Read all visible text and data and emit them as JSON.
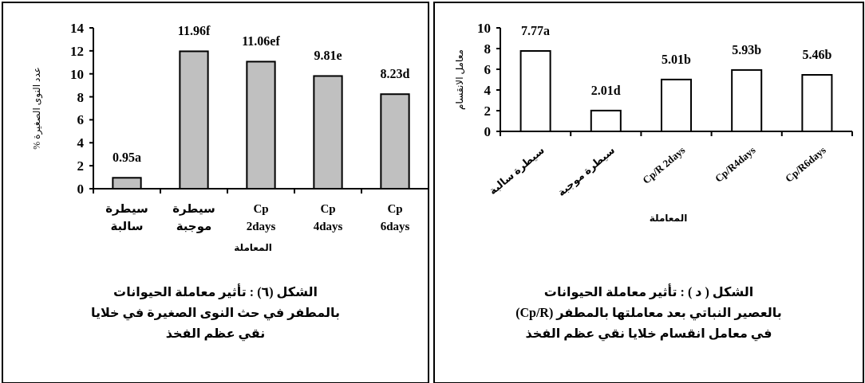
{
  "chart_data": [
    {
      "type": "bar",
      "ylabel": "عدد النوى الصغيرة %",
      "xlabel": "المعاملة",
      "categories": [
        "سيطرة سالبة",
        "سيطرة موجبة",
        "Cp 2days",
        "Cp 4days",
        "Cp 6days"
      ],
      "values": [
        0.95,
        11.96,
        11.06,
        9.81,
        8.23
      ],
      "color": "#c0c0c0",
      "value_labels": [
        "0.95a",
        "11.96f",
        "11.06ef",
        "9.81e",
        "8.23d"
      ],
      "ylim": [
        0,
        14
      ],
      "yticks": [
        0,
        2,
        4,
        6,
        8,
        10,
        12,
        14
      ],
      "grid": false,
      "annotations": [
        "الشكل (٦) : تأثير معاملة الحيوانات\nبالمطفر في حث النوى الصغيرة في خلايا\nنقي عظم الفخذ"
      ]
    },
    {
      "type": "bar",
      "ylabel": "معامل الانقسام",
      "xlabel": "المعاملة",
      "categories": [
        "سيطرة سالبة",
        "سيطرة موجبة",
        "Cp/R 2days",
        "Cp/R4days",
        "Cp/R6days"
      ],
      "values": [
        7.77,
        2.01,
        5.01,
        5.93,
        5.46
      ],
      "color": "#ffffff",
      "value_labels": [
        "7.77a",
        "2.01d",
        "5.01b",
        "5.93b",
        "5.46b"
      ],
      "ylim": [
        0,
        10
      ],
      "yticks": [
        0,
        2,
        4,
        6,
        8,
        10
      ],
      "grid": false,
      "annotations": [
        "الشكل ( د ) : تأثير معاملة الحيوانات\nبالعصير النباتي بعد معاملتها بالمطفر (Cp/R)\nفي معامل انقسام خلايا نقي عظم الفخذ"
      ]
    }
  ]
}
